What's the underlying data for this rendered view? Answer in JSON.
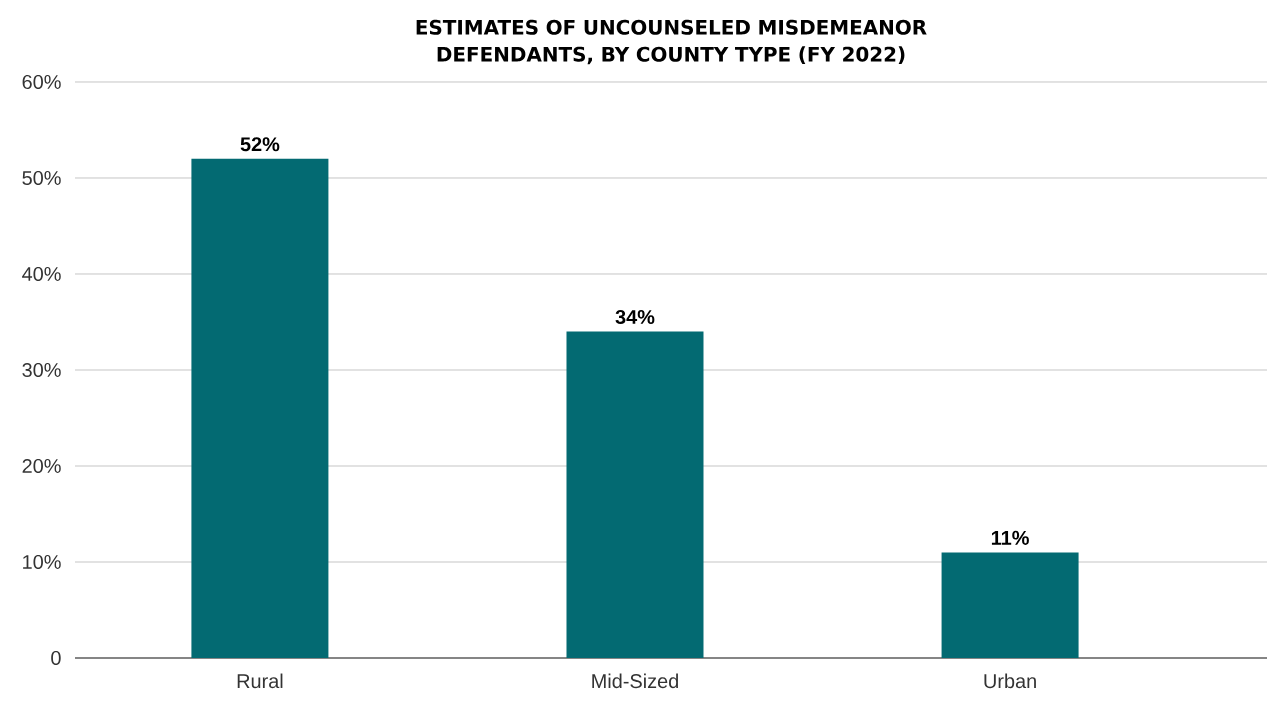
{
  "chart_data": {
    "type": "bar",
    "title": "ESTIMATES OF UNCOUNSELED MISDEMEANOR DEFENDANTS, BY COUNTY TYPE (FY 2022)",
    "categories": [
      "Rural",
      "Mid-Sized",
      "Urban"
    ],
    "values": [
      52,
      34,
      11
    ],
    "value_labels": [
      "52%",
      "34%",
      "11%"
    ],
    "color": "#036a72",
    "ylim": [
      0,
      60
    ],
    "yticks": [
      {
        "value": 0,
        "label": "0"
      },
      {
        "value": 10,
        "label": "10%"
      },
      {
        "value": 20,
        "label": "20%"
      },
      {
        "value": 30,
        "label": "30%"
      },
      {
        "value": 40,
        "label": "40%"
      },
      {
        "value": 50,
        "label": "50%"
      },
      {
        "value": 60,
        "label": "60%"
      }
    ],
    "grid": "y"
  }
}
